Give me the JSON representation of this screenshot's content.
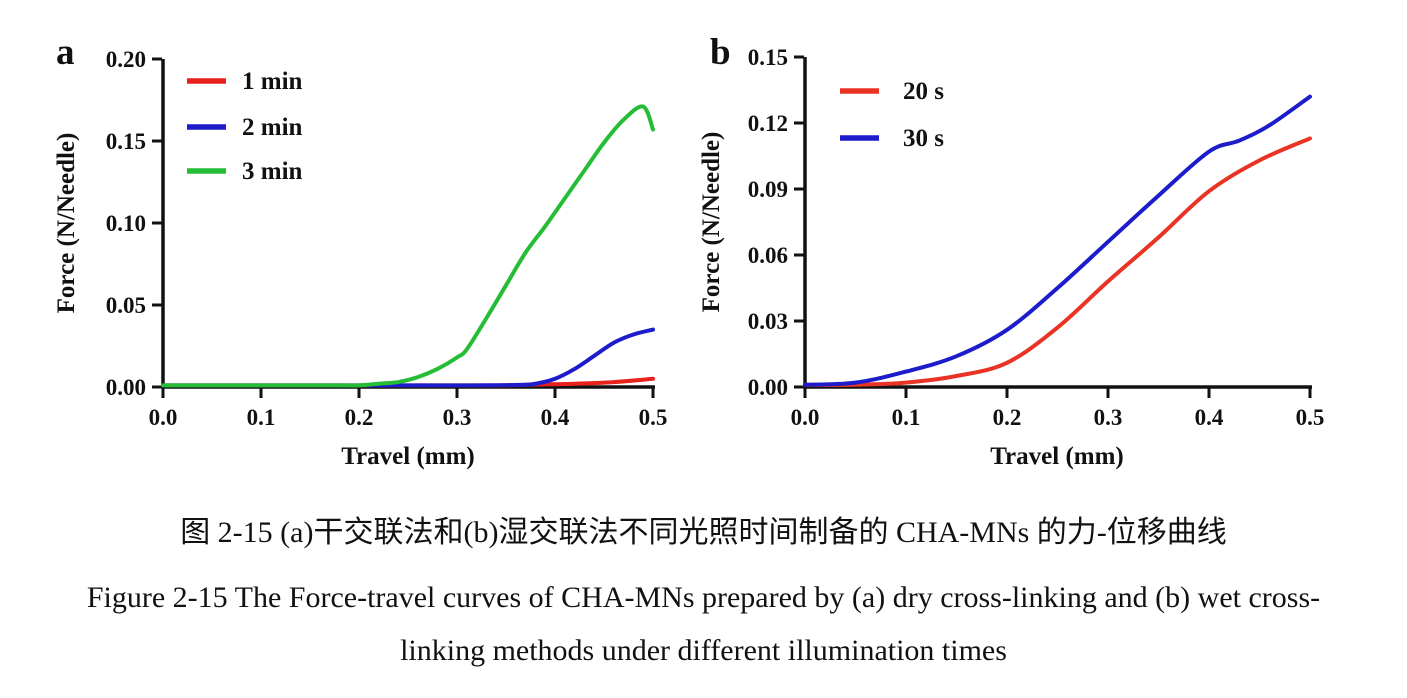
{
  "captions": {
    "chinese": "图 2-15 (a)干交联法和(b)湿交联法不同光照时间制备的 CHA-MNs 的力-位移曲线",
    "english_line1": "Figure 2-15 The Force-travel curves of CHA-MNs prepared by (a) dry cross-linking and (b) wet cross-",
    "english_line2": "linking methods under different illumination times"
  },
  "colors": {
    "ink": "#111111",
    "red_a": "#e8211c",
    "blue": "#1d1cca",
    "green": "#25bd35",
    "red_b": "#e93325"
  },
  "chart_data": [
    {
      "type": "line",
      "panel": "a",
      "xlabel": "Travel (mm)",
      "ylabel": "Force (N/Needle)",
      "xlim": [
        0.0,
        0.5
      ],
      "ylim": [
        0.0,
        0.2
      ],
      "x_tick_labels": [
        "0.0",
        "0.1",
        "0.2",
        "0.3",
        "0.4",
        "0.5"
      ],
      "y_tick_labels": [
        "0.00",
        "0.05",
        "0.10",
        "0.15",
        "0.20"
      ],
      "grid": false,
      "legend_position": "top-left-inside",
      "series": [
        {
          "name": "1 min",
          "color": "#e8211c",
          "x": [
            0.0,
            0.05,
            0.1,
            0.15,
            0.2,
            0.25,
            0.3,
            0.34,
            0.38,
            0.42,
            0.46,
            0.5
          ],
          "y": [
            0.001,
            0.001,
            0.001,
            0.001,
            0.001,
            0.001,
            0.001,
            0.001,
            0.0015,
            0.002,
            0.003,
            0.005
          ]
        },
        {
          "name": "2 min",
          "color": "#1d1cca",
          "x": [
            0.0,
            0.1,
            0.2,
            0.3,
            0.36,
            0.38,
            0.4,
            0.42,
            0.44,
            0.46,
            0.48,
            0.5
          ],
          "y": [
            0.001,
            0.001,
            0.001,
            0.001,
            0.0012,
            0.002,
            0.005,
            0.011,
            0.019,
            0.027,
            0.032,
            0.035
          ]
        },
        {
          "name": "3 min",
          "color": "#25bd35",
          "x": [
            0.0,
            0.1,
            0.18,
            0.2,
            0.22,
            0.24,
            0.26,
            0.28,
            0.3,
            0.31,
            0.33,
            0.35,
            0.37,
            0.39,
            0.41,
            0.43,
            0.45,
            0.47,
            0.49,
            0.5
          ],
          "y": [
            0.001,
            0.001,
            0.001,
            0.001,
            0.002,
            0.003,
            0.006,
            0.011,
            0.018,
            0.023,
            0.042,
            0.062,
            0.082,
            0.098,
            0.115,
            0.132,
            0.149,
            0.163,
            0.171,
            0.157
          ]
        }
      ]
    },
    {
      "type": "line",
      "panel": "b",
      "xlabel": "Travel (mm)",
      "ylabel": "Force (N/Needle)",
      "xlim": [
        0.0,
        0.5
      ],
      "ylim": [
        0.0,
        0.15
      ],
      "x_tick_labels": [
        "0.0",
        "0.1",
        "0.2",
        "0.3",
        "0.4",
        "0.5"
      ],
      "y_tick_labels": [
        "0.00",
        "0.03",
        "0.06",
        "0.09",
        "0.12",
        "0.15"
      ],
      "grid": false,
      "legend_position": "top-left-inside",
      "series": [
        {
          "name": "20 s",
          "color": "#e93325",
          "x": [
            0.0,
            0.05,
            0.1,
            0.15,
            0.2,
            0.25,
            0.3,
            0.35,
            0.4,
            0.45,
            0.5
          ],
          "y": [
            0.001,
            0.001,
            0.002,
            0.005,
            0.011,
            0.027,
            0.048,
            0.068,
            0.089,
            0.103,
            0.113
          ]
        },
        {
          "name": "30 s",
          "color": "#1d1cca",
          "x": [
            0.0,
            0.05,
            0.1,
            0.15,
            0.2,
            0.25,
            0.3,
            0.35,
            0.4,
            0.43,
            0.46,
            0.5
          ],
          "y": [
            0.001,
            0.002,
            0.007,
            0.014,
            0.026,
            0.045,
            0.066,
            0.087,
            0.107,
            0.112,
            0.119,
            0.132
          ]
        }
      ]
    }
  ]
}
